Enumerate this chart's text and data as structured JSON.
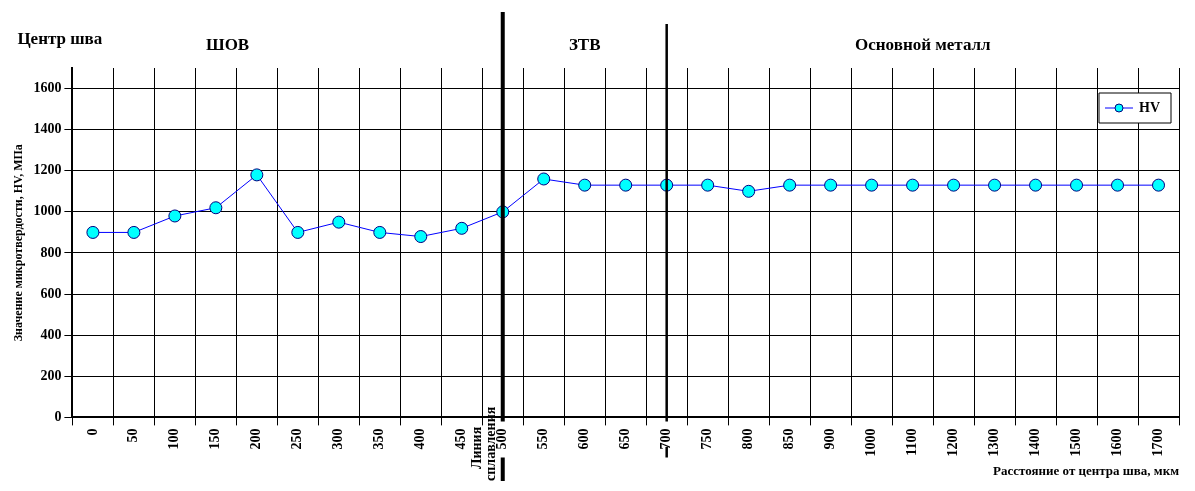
{
  "chart_data": {
    "type": "line",
    "ylabel": "Значение микротвердости, HV, МПа",
    "xlabel": "Расстояние от центра шва, мкм",
    "categories": [
      "0",
      "50",
      "100",
      "150",
      "200",
      "250",
      "300",
      "350",
      "400",
      "450",
      "500",
      "550",
      "600",
      "650",
      "700",
      "750",
      "800",
      "850",
      "900",
      "1000",
      "1100",
      "1200",
      "1300",
      "1400",
      "1500",
      "1600",
      "1700"
    ],
    "series": [
      {
        "name": "HV",
        "color": "#0000ff",
        "values": [
          900,
          900,
          980,
          1020,
          1180,
          900,
          950,
          900,
          880,
          920,
          1000,
          1160,
          1130,
          1130,
          1130,
          1130,
          1100,
          1130,
          1130,
          1130,
          1130,
          1130,
          1130,
          1130,
          1130,
          1130,
          1130
        ]
      }
    ],
    "ylim": [
      0,
      1700
    ],
    "yticks": [
      0,
      200,
      400,
      600,
      800,
      1000,
      1200,
      1400,
      1600
    ],
    "grid": true,
    "legend": "top right",
    "marker": "circle",
    "line_style": "solid",
    "ref_lines": [
      {
        "axis": "x",
        "value": "500",
        "label": "Линия сплавления"
      },
      {
        "axis": "x",
        "value": "700"
      }
    ],
    "annotations": [
      "Центр шва",
      "ШОВ",
      "ЗТВ",
      "Основной металл"
    ]
  }
}
